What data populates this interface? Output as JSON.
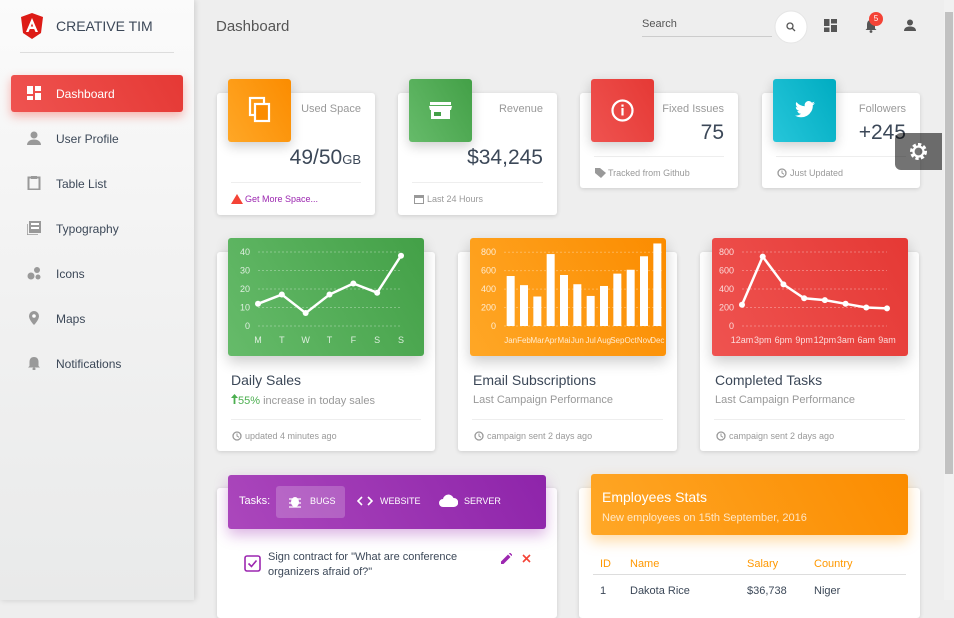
{
  "brand": "CREATIVE TIM",
  "nav": [
    "Dashboard",
    "User Profile",
    "Table List",
    "Typography",
    "Icons",
    "Maps",
    "Notifications"
  ],
  "navbar": {
    "title": "Dashboard",
    "search": "Search",
    "badge": "5"
  },
  "stats": [
    {
      "label": "Used Space",
      "value": "49/50",
      "unit": "GB",
      "footer": "Get More Space..."
    },
    {
      "label": "Revenue",
      "value": "$34,245",
      "footer": "Last 24 Hours"
    },
    {
      "label": "Fixed Issues",
      "value": "75",
      "footer": "Tracked from Github"
    },
    {
      "label": "Followers",
      "value": "+245",
      "footer": "Just Updated"
    }
  ],
  "chart_data": [
    {
      "type": "line",
      "title": "Daily Sales",
      "highlight": "55%",
      "subtitle": "increase in today sales",
      "footer": "updated 4 minutes ago",
      "categories": [
        "M",
        "T",
        "W",
        "T",
        "F",
        "S",
        "S"
      ],
      "values": [
        12,
        17,
        7,
        17,
        23,
        18,
        38
      ],
      "color": "#ffffff",
      "ylim": [
        0,
        40
      ],
      "yticks": [
        0,
        10,
        20,
        30,
        40
      ],
      "grid": true
    },
    {
      "type": "bar",
      "title": "Email Subscriptions",
      "subtitle": "Last Campaign Performance",
      "footer": "campaign sent 2 days ago",
      "categories": [
        "Jan",
        "Feb",
        "Mar",
        "Apr",
        "Mai",
        "Jun",
        "Jul",
        "Aug",
        "Sep",
        "Oct",
        "Nov",
        "Dec"
      ],
      "values": [
        542,
        443,
        320,
        780,
        553,
        453,
        326,
        434,
        568,
        610,
        756,
        895
      ],
      "color": "#ffffff",
      "ylim": [
        0,
        900
      ],
      "yticks": [
        0,
        200,
        400,
        600,
        800
      ],
      "grid": true
    },
    {
      "type": "line",
      "title": "Completed Tasks",
      "subtitle": "Last Campaign Performance",
      "footer": "campaign sent 2 days ago",
      "categories": [
        "12am",
        "3pm",
        "6pm",
        "9pm",
        "12pm",
        "3am",
        "6am",
        "9am"
      ],
      "values": [
        230,
        750,
        450,
        300,
        280,
        240,
        200,
        190
      ],
      "color": "#ffffff",
      "ylim": [
        0,
        800
      ],
      "yticks": [
        0,
        200,
        400,
        600,
        800
      ],
      "grid": true
    }
  ],
  "tasks": {
    "label": "Tasks:",
    "tabs": [
      "BUGS",
      "WEBSITE",
      "SERVER"
    ],
    "items": [
      "Sign contract for \"What are conference organizers afraid of?\""
    ]
  },
  "employees": {
    "title": "Employees Stats",
    "subtitle": "New employees on 15th September, 2016",
    "columns": [
      "ID",
      "Name",
      "Salary",
      "Country"
    ],
    "rows": [
      [
        "1",
        "Dakota Rice",
        "$36,738",
        "Niger"
      ]
    ]
  }
}
